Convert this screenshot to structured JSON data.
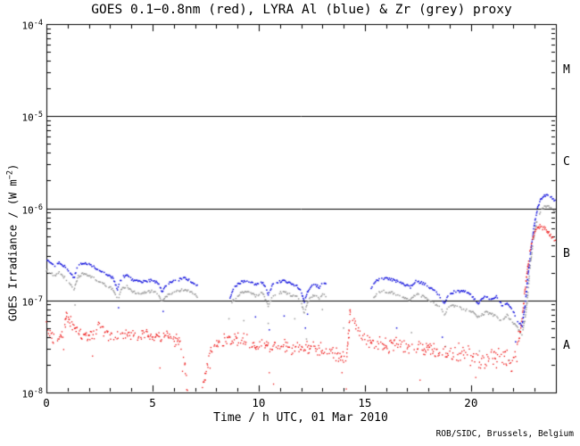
{
  "page": {
    "background": "#ffffff"
  },
  "chart_data": {
    "type": "scatter",
    "title": "GOES 0.1−0.8nm (red), LYRA Al (blue) & Zr (grey) proxy",
    "xlabel": "Time / h UTC, 01 Mar 2010",
    "ylabel": {
      "pre": "GOES Irradiance / (W m",
      "sup": "−2",
      "post": ")"
    },
    "credit": "ROB/SIDC, Brussels, Belgium",
    "x_range": [
      0,
      24
    ],
    "x_major_ticks": [
      0,
      5,
      10,
      15,
      20
    ],
    "x_minor_tick_step": 1,
    "y_scale": "log",
    "y_exp_range": [
      -8,
      -4
    ],
    "y_tick_exponents": [
      -4,
      -5,
      -6,
      -7,
      -8
    ],
    "hline_exponents": [
      -5,
      -6,
      -7
    ],
    "grid": false,
    "legend_position": "none (colors named in title)",
    "flare_classes": [
      {
        "label": "M",
        "center_log": -4.5
      },
      {
        "label": "C",
        "center_log": -5.5
      },
      {
        "label": "B",
        "center_log": -6.5
      },
      {
        "label": "A",
        "center_log": -7.5
      }
    ],
    "units_note": "anchor points are [time_h, log10(irradiance W/m2)]",
    "series": [
      {
        "key": "goes",
        "name": "GOES 0.1-0.8nm",
        "color": "#ee1111",
        "style": "noisy-dots",
        "jitter_profile": [
          [
            0,
            0.08
          ],
          [
            6.4,
            0.1
          ],
          [
            8,
            0.09
          ],
          [
            16,
            0.11
          ],
          [
            19,
            0.14
          ],
          [
            22.25,
            0.03
          ]
        ],
        "segments": [
          [
            [
              0,
              -7.28
            ],
            [
              0.2,
              -7.36
            ],
            [
              0.45,
              -7.48
            ],
            [
              0.6,
              -7.42
            ],
            [
              0.8,
              -7.36
            ],
            [
              0.95,
              -7.14
            ],
            [
              1.1,
              -7.22
            ],
            [
              1.4,
              -7.33
            ],
            [
              1.7,
              -7.38
            ],
            [
              2.0,
              -7.4
            ],
            [
              2.3,
              -7.37
            ],
            [
              2.5,
              -7.21
            ],
            [
              2.7,
              -7.33
            ],
            [
              3.0,
              -7.38
            ],
            [
              3.5,
              -7.37
            ],
            [
              4.0,
              -7.38
            ],
            [
              4.5,
              -7.37
            ],
            [
              5.0,
              -7.38
            ],
            [
              5.5,
              -7.4
            ],
            [
              6.0,
              -7.42
            ],
            [
              6.3,
              -7.46
            ],
            [
              6.5,
              -7.65
            ],
            [
              6.62,
              -7.95
            ],
            [
              6.75,
              -8.4
            ],
            [
              7.2,
              -8.4
            ],
            [
              7.35,
              -7.95
            ],
            [
              7.55,
              -7.75
            ],
            [
              7.75,
              -7.55
            ],
            [
              8.0,
              -7.46
            ],
            [
              8.5,
              -7.43
            ],
            [
              9.0,
              -7.43
            ],
            [
              9.5,
              -7.45
            ],
            [
              10.0,
              -7.48
            ],
            [
              10.5,
              -7.51
            ],
            [
              11.0,
              -7.49
            ],
            [
              11.5,
              -7.51
            ],
            [
              12.0,
              -7.53
            ],
            [
              12.5,
              -7.51
            ],
            [
              13.0,
              -7.53
            ],
            [
              13.5,
              -7.56
            ],
            [
              13.9,
              -7.61
            ],
            [
              14.15,
              -7.62
            ],
            [
              14.25,
              -7.35
            ],
            [
              14.32,
              -7.08
            ],
            [
              14.45,
              -7.18
            ],
            [
              14.7,
              -7.33
            ],
            [
              15.0,
              -7.43
            ],
            [
              15.5,
              -7.47
            ],
            [
              16.0,
              -7.49
            ],
            [
              16.5,
              -7.48
            ],
            [
              17.0,
              -7.51
            ],
            [
              17.5,
              -7.53
            ],
            [
              18.0,
              -7.51
            ],
            [
              18.5,
              -7.56
            ],
            [
              19.0,
              -7.59
            ],
            [
              19.5,
              -7.57
            ],
            [
              20.0,
              -7.61
            ],
            [
              20.5,
              -7.63
            ],
            [
              21.0,
              -7.61
            ],
            [
              21.5,
              -7.63
            ],
            [
              21.9,
              -7.68
            ],
            [
              22.15,
              -7.58
            ],
            [
              22.3,
              -7.38
            ],
            [
              22.45,
              -7.1
            ],
            [
              22.6,
              -6.78
            ],
            [
              22.75,
              -6.5
            ],
            [
              22.9,
              -6.33
            ],
            [
              23.05,
              -6.24
            ],
            [
              23.25,
              -6.2
            ],
            [
              23.5,
              -6.23
            ],
            [
              23.75,
              -6.29
            ],
            [
              24,
              -6.36
            ]
          ]
        ],
        "outliers": []
      },
      {
        "key": "al",
        "name": "LYRA Al proxy",
        "color": "#1111dd",
        "style": "dotted-curve",
        "segments": [
          [
            [
              0,
              -6.55
            ],
            [
              0.4,
              -6.62
            ],
            [
              0.6,
              -6.58
            ],
            [
              0.9,
              -6.64
            ],
            [
              1.3,
              -6.76
            ],
            [
              1.5,
              -6.62
            ],
            [
              1.75,
              -6.59
            ],
            [
              2.1,
              -6.62
            ],
            [
              2.5,
              -6.68
            ],
            [
              2.9,
              -6.73
            ],
            [
              3.15,
              -6.76
            ],
            [
              3.35,
              -6.88
            ],
            [
              3.55,
              -6.75
            ],
            [
              3.8,
              -6.73
            ],
            [
              4.1,
              -6.79
            ],
            [
              4.5,
              -6.8
            ],
            [
              5.0,
              -6.78
            ],
            [
              5.3,
              -6.82
            ],
            [
              5.45,
              -6.91
            ],
            [
              5.6,
              -6.84
            ],
            [
              5.9,
              -6.8
            ],
            [
              6.2,
              -6.78
            ],
            [
              6.5,
              -6.76
            ],
            [
              6.8,
              -6.79
            ],
            [
              7.15,
              -6.84
            ]
          ],
          [
            [
              8.65,
              -6.97
            ],
            [
              8.8,
              -6.88
            ],
            [
              9.1,
              -6.81
            ],
            [
              9.45,
              -6.78
            ],
            [
              9.85,
              -6.83
            ],
            [
              10.2,
              -6.8
            ],
            [
              10.45,
              -6.94
            ],
            [
              10.65,
              -6.83
            ],
            [
              10.9,
              -6.8
            ],
            [
              11.2,
              -6.79
            ],
            [
              11.5,
              -6.82
            ],
            [
              11.8,
              -6.84
            ],
            [
              12.0,
              -6.9
            ],
            [
              12.15,
              -7.02
            ],
            [
              12.35,
              -6.88
            ],
            [
              12.6,
              -6.82
            ],
            [
              12.85,
              -6.86
            ],
            [
              13.05,
              -6.79
            ],
            [
              13.2,
              -6.84
            ]
          ],
          [
            [
              15.3,
              -6.86
            ],
            [
              15.55,
              -6.79
            ],
            [
              15.8,
              -6.76
            ],
            [
              16.2,
              -6.77
            ],
            [
              16.6,
              -6.8
            ],
            [
              17.0,
              -6.84
            ],
            [
              17.15,
              -6.86
            ],
            [
              17.4,
              -6.79
            ],
            [
              17.8,
              -6.82
            ],
            [
              18.2,
              -6.88
            ],
            [
              18.55,
              -6.96
            ],
            [
              18.75,
              -7.03
            ],
            [
              18.95,
              -6.94
            ],
            [
              19.2,
              -6.91
            ],
            [
              19.6,
              -6.9
            ],
            [
              19.9,
              -6.92
            ],
            [
              20.1,
              -6.97
            ],
            [
              20.35,
              -7.03
            ],
            [
              20.6,
              -6.96
            ],
            [
              20.9,
              -6.98
            ],
            [
              21.2,
              -6.96
            ],
            [
              21.45,
              -7.05
            ],
            [
              21.7,
              -7.03
            ],
            [
              21.95,
              -7.1
            ],
            [
              22.2,
              -7.22
            ],
            [
              22.4,
              -7.29
            ],
            [
              22.55,
              -7.05
            ],
            [
              22.7,
              -6.7
            ],
            [
              22.85,
              -6.4
            ],
            [
              23.0,
              -6.15
            ],
            [
              23.15,
              -5.99
            ],
            [
              23.3,
              -5.9
            ],
            [
              23.5,
              -5.86
            ],
            [
              23.75,
              -5.87
            ],
            [
              24,
              -5.93
            ]
          ]
        ],
        "outliers": [
          [
            3.4,
            -7.08
          ],
          [
            5.5,
            -7.12
          ],
          [
            9.85,
            -7.18
          ],
          [
            10.5,
            -7.32
          ],
          [
            11.2,
            -7.17
          ],
          [
            12.2,
            -7.3
          ],
          [
            12.3,
            -7.15
          ],
          [
            16.5,
            -7.3
          ],
          [
            18.65,
            -7.4
          ],
          [
            22.1,
            -7.45
          ]
        ]
      },
      {
        "key": "zr",
        "name": "LYRA Zr proxy",
        "color": "#9a9a9a",
        "style": "dotted-curve",
        "segments": [
          [
            [
              0,
              -6.67
            ],
            [
              0.4,
              -6.74
            ],
            [
              0.6,
              -6.7
            ],
            [
              0.9,
              -6.76
            ],
            [
              1.3,
              -6.88
            ],
            [
              1.5,
              -6.74
            ],
            [
              1.75,
              -6.71
            ],
            [
              2.1,
              -6.74
            ],
            [
              2.5,
              -6.8
            ],
            [
              2.9,
              -6.85
            ],
            [
              3.15,
              -6.88
            ],
            [
              3.35,
              -7.0
            ],
            [
              3.55,
              -6.87
            ],
            [
              3.8,
              -6.85
            ],
            [
              4.1,
              -6.91
            ],
            [
              4.5,
              -6.92
            ],
            [
              5.0,
              -6.9
            ],
            [
              5.3,
              -6.94
            ],
            [
              5.45,
              -7.03
            ],
            [
              5.6,
              -6.96
            ],
            [
              5.9,
              -6.92
            ],
            [
              6.2,
              -6.9
            ],
            [
              6.5,
              -6.88
            ],
            [
              6.8,
              -6.91
            ],
            [
              7.15,
              -6.96
            ]
          ],
          [
            [
              8.65,
              -7.09
            ],
            [
              8.8,
              -7.0
            ],
            [
              9.1,
              -6.93
            ],
            [
              9.45,
              -6.9
            ],
            [
              9.85,
              -6.95
            ],
            [
              10.2,
              -6.92
            ],
            [
              10.45,
              -7.06
            ],
            [
              10.65,
              -6.95
            ],
            [
              10.9,
              -6.92
            ],
            [
              11.2,
              -6.91
            ],
            [
              11.5,
              -6.94
            ],
            [
              11.8,
              -6.96
            ],
            [
              12.0,
              -7.02
            ],
            [
              12.15,
              -7.14
            ],
            [
              12.35,
              -7.0
            ],
            [
              12.6,
              -6.94
            ],
            [
              12.85,
              -6.98
            ],
            [
              13.05,
              -6.91
            ],
            [
              13.2,
              -6.96
            ]
          ],
          [
            [
              15.3,
              -7.0
            ],
            [
              15.55,
              -6.93
            ],
            [
              15.8,
              -6.9
            ],
            [
              16.2,
              -6.91
            ],
            [
              16.6,
              -6.94
            ],
            [
              17.0,
              -6.98
            ],
            [
              17.15,
              -7.0
            ],
            [
              17.4,
              -6.93
            ],
            [
              17.8,
              -6.96
            ],
            [
              18.2,
              -7.02
            ],
            [
              18.55,
              -7.08
            ],
            [
              18.75,
              -7.15
            ],
            [
              19.0,
              -7.05
            ],
            [
              19.3,
              -7.06
            ],
            [
              19.7,
              -7.1
            ],
            [
              20.1,
              -7.13
            ],
            [
              20.35,
              -7.18
            ],
            [
              20.7,
              -7.13
            ],
            [
              21.0,
              -7.15
            ],
            [
              21.4,
              -7.22
            ],
            [
              21.7,
              -7.16
            ],
            [
              22.0,
              -7.25
            ],
            [
              22.2,
              -7.3
            ],
            [
              22.4,
              -7.38
            ],
            [
              22.55,
              -7.2
            ],
            [
              22.65,
              -7.0
            ],
            [
              22.8,
              -6.6
            ],
            [
              22.95,
              -6.33
            ],
            [
              23.1,
              -6.14
            ],
            [
              23.3,
              -6.02
            ],
            [
              23.5,
              -5.98
            ],
            [
              23.7,
              -5.98
            ],
            [
              23.85,
              -6.0
            ],
            [
              24,
              -6.06
            ]
          ]
        ],
        "outliers": [
          [
            1.35,
            -7.05
          ],
          [
            8.6,
            -7.2
          ],
          [
            9.3,
            -7.22
          ],
          [
            10.45,
            -7.25
          ],
          [
            11.7,
            -7.2
          ],
          [
            12.25,
            -7.42
          ],
          [
            13.0,
            -7.1
          ],
          [
            14.0,
            -7.3
          ],
          [
            17.2,
            -7.35
          ],
          [
            18.8,
            -7.5
          ],
          [
            20.4,
            -7.55
          ],
          [
            21.8,
            -7.65
          ]
        ]
      }
    ]
  }
}
